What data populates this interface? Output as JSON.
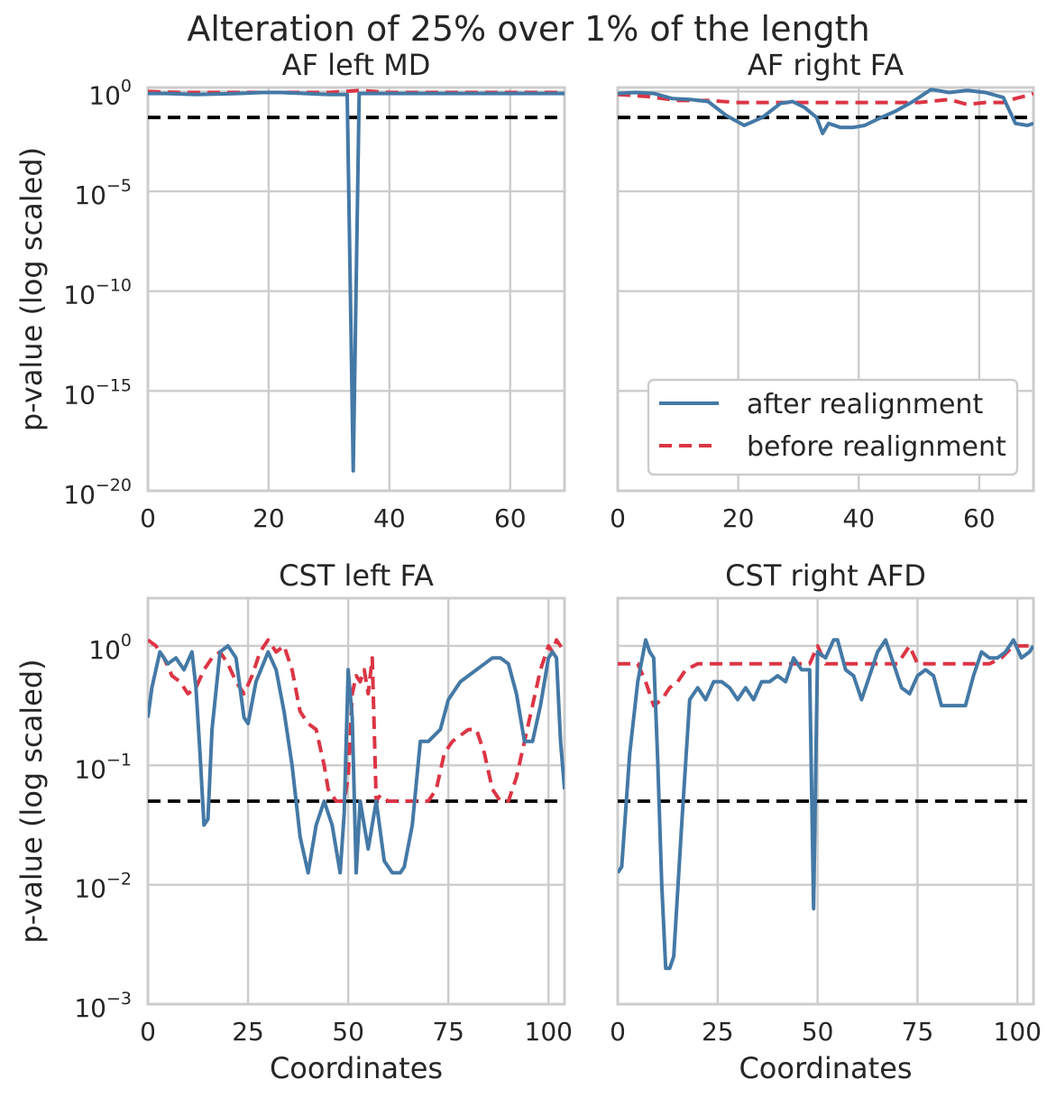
{
  "figure": {
    "title": "Alteration of 25% over 1% of the length",
    "colors": {
      "after": "#4479a6",
      "before": "#dc3545",
      "threshold": "#000000",
      "grid": "#cccccc",
      "text": "#262626"
    },
    "legend": {
      "entries": [
        "after realignment",
        "before realignment"
      ],
      "placement": "lower-right of AF right FA panel"
    }
  },
  "chart_data": [
    {
      "type": "line",
      "title": "AF left MD",
      "xlabel": "",
      "ylabel": "p-value (log scaled)",
      "xlim": [
        0,
        69
      ],
      "ylim_log10": [
        -20,
        0.2
      ],
      "x_ticks": [
        0,
        20,
        40,
        60
      ],
      "y_ticks": [
        {
          "base": "10",
          "exp": "0",
          "log10": 0
        },
        {
          "base": "10",
          "exp": "−5",
          "log10": -5
        },
        {
          "base": "10",
          "exp": "−10",
          "log10": -10
        },
        {
          "base": "10",
          "exp": "−15",
          "log10": -15
        },
        {
          "base": "10",
          "exp": "−20",
          "log10": -20
        }
      ],
      "threshold_log10": -1.3,
      "series": [
        {
          "name": "after realignment",
          "style": "solid",
          "x": [
            0,
            3,
            8,
            15,
            19,
            22,
            26,
            30,
            33,
            34,
            35,
            38,
            45,
            55,
            65,
            69
          ],
          "log10p": [
            -0.1,
            -0.1,
            -0.15,
            -0.1,
            -0.05,
            -0.05,
            -0.1,
            -0.15,
            -0.15,
            -19,
            -0.1,
            -0.1,
            -0.1,
            -0.1,
            -0.1,
            -0.1
          ]
        },
        {
          "name": "before realignment",
          "style": "dashed",
          "x": [
            0,
            5,
            10,
            15,
            20,
            25,
            30,
            35,
            40,
            45,
            50,
            55,
            60,
            65,
            69
          ],
          "log10p": [
            0.0,
            -0.05,
            -0.05,
            -0.05,
            -0.05,
            -0.05,
            -0.05,
            0.05,
            -0.05,
            -0.05,
            -0.05,
            -0.05,
            -0.05,
            -0.05,
            -0.05
          ]
        }
      ]
    },
    {
      "type": "line",
      "title": "AF right FA",
      "xlabel": "",
      "ylabel": "",
      "xlim": [
        0,
        69
      ],
      "ylim_log10": [
        -20,
        0.2
      ],
      "x_ticks": [
        0,
        20,
        40,
        60
      ],
      "y_ticks": [],
      "threshold_log10": -1.3,
      "series": [
        {
          "name": "after realignment",
          "style": "solid",
          "x": [
            0,
            3,
            6,
            9,
            12,
            15,
            18,
            21,
            24,
            27,
            29,
            31,
            33,
            34,
            35,
            37,
            39,
            41,
            43,
            46,
            49,
            52,
            55,
            58,
            61,
            64,
            66,
            68,
            69
          ],
          "log10p": [
            -0.1,
            -0.05,
            -0.1,
            -0.35,
            -0.4,
            -0.5,
            -1.2,
            -1.7,
            -1.3,
            -0.6,
            -0.5,
            -0.8,
            -1.3,
            -2.1,
            -1.6,
            -1.8,
            -1.8,
            -1.7,
            -1.4,
            -1.0,
            -0.5,
            0.1,
            -0.05,
            0.05,
            -0.05,
            -0.3,
            -1.6,
            -1.7,
            -1.6
          ]
        },
        {
          "name": "before realignment",
          "style": "dashed",
          "x": [
            0,
            5,
            10,
            15,
            20,
            25,
            30,
            35,
            40,
            45,
            50,
            55,
            58,
            61,
            64,
            66,
            68,
            69
          ],
          "log10p": [
            -0.15,
            -0.25,
            -0.45,
            -0.45,
            -0.55,
            -0.55,
            -0.55,
            -0.55,
            -0.55,
            -0.55,
            -0.55,
            -0.4,
            -0.65,
            -0.55,
            -0.55,
            -0.35,
            -0.2,
            -0.1
          ]
        }
      ]
    },
    {
      "type": "line",
      "title": "CST left FA",
      "xlabel": "Coordinates",
      "ylabel": "p-value (log scaled)",
      "xlim": [
        0,
        104
      ],
      "ylim_log10": [
        -3,
        0.4
      ],
      "x_ticks": [
        0,
        25,
        50,
        75,
        100
      ],
      "y_ticks": [
        {
          "base": "10",
          "exp": "0",
          "log10": 0
        },
        {
          "base": "10",
          "exp": "−1",
          "log10": -1
        },
        {
          "base": "10",
          "exp": "−2",
          "log10": -2
        },
        {
          "base": "10",
          "exp": "−3",
          "log10": -3
        }
      ],
      "threshold_log10": -1.3,
      "series": [
        {
          "name": "after realignment",
          "style": "solid",
          "x": [
            0,
            1,
            3,
            5,
            7,
            9,
            11,
            12,
            13,
            14,
            15,
            16,
            18,
            20,
            22,
            24,
            25,
            27,
            30,
            32,
            34,
            36,
            38,
            40,
            42,
            44,
            46,
            48,
            49,
            50,
            51,
            52,
            53,
            55,
            57,
            59,
            61,
            63,
            64,
            66,
            68,
            70,
            73,
            75,
            78,
            80,
            82,
            84,
            86,
            88,
            90,
            92,
            94,
            96,
            98,
            100,
            101,
            102,
            103,
            104
          ],
          "log10p": [
            -0.6,
            -0.35,
            -0.05,
            -0.15,
            -0.1,
            -0.2,
            -0.05,
            -0.35,
            -0.9,
            -1.5,
            -1.45,
            -0.7,
            -0.05,
            0.0,
            -0.1,
            -0.6,
            -0.65,
            -0.3,
            -0.05,
            -0.2,
            -0.55,
            -1.0,
            -1.6,
            -1.9,
            -1.5,
            -1.3,
            -1.5,
            -1.9,
            -1.4,
            -0.2,
            -0.6,
            -1.9,
            -1.3,
            -1.7,
            -1.3,
            -1.8,
            -1.9,
            -1.9,
            -1.85,
            -1.5,
            -0.8,
            -0.8,
            -0.7,
            -0.45,
            -0.3,
            -0.25,
            -0.2,
            -0.15,
            -0.1,
            -0.1,
            -0.15,
            -0.4,
            -0.8,
            -0.8,
            -0.5,
            -0.1,
            -0.05,
            -0.1,
            -0.8,
            -1.2
          ]
        },
        {
          "name": "before realignment",
          "style": "dashed",
          "x": [
            0,
            2,
            4,
            6,
            8,
            10,
            12,
            14,
            16,
            18,
            20,
            22,
            24,
            26,
            28,
            30,
            32,
            34,
            36,
            38,
            40,
            42,
            44,
            45,
            47,
            49,
            50,
            51,
            52,
            53,
            54,
            55,
            56,
            57,
            58,
            60,
            62,
            64,
            66,
            68,
            70,
            72,
            74,
            76,
            78,
            80,
            82,
            84,
            86,
            88,
            90,
            92,
            94,
            96,
            98,
            100,
            101,
            102,
            104
          ],
          "log10p": [
            0.05,
            0.0,
            -0.1,
            -0.25,
            -0.3,
            -0.4,
            -0.35,
            -0.2,
            -0.1,
            -0.05,
            -0.15,
            -0.3,
            -0.4,
            -0.25,
            -0.05,
            0.05,
            -0.05,
            0.0,
            -0.2,
            -0.55,
            -0.65,
            -0.7,
            -1.0,
            -1.2,
            -1.3,
            -1.3,
            -1.1,
            -0.4,
            -0.25,
            -0.3,
            -0.2,
            -0.4,
            -0.1,
            -1.3,
            -1.25,
            -1.3,
            -1.3,
            -1.3,
            -1.3,
            -1.3,
            -1.3,
            -1.2,
            -0.9,
            -0.8,
            -0.75,
            -0.7,
            -0.7,
            -0.9,
            -1.2,
            -1.3,
            -1.3,
            -1.1,
            -0.8,
            -0.5,
            -0.2,
            0.0,
            -0.05,
            0.05,
            -0.05
          ]
        }
      ]
    },
    {
      "type": "line",
      "title": "CST right AFD",
      "xlabel": "Coordinates",
      "ylabel": "",
      "xlim": [
        0,
        104
      ],
      "ylim_log10": [
        -3,
        0.4
      ],
      "x_ticks": [
        0,
        25,
        50,
        75,
        100
      ],
      "y_ticks": [],
      "threshold_log10": -1.3,
      "series": [
        {
          "name": "after realignment",
          "style": "solid",
          "x": [
            0,
            1,
            3,
            5,
            7,
            8,
            9,
            10,
            11,
            12,
            13,
            14,
            16,
            18,
            20,
            22,
            24,
            26,
            28,
            30,
            32,
            34,
            36,
            38,
            40,
            42,
            44,
            46,
            48,
            49,
            50,
            52,
            54,
            55,
            57,
            59,
            61,
            63,
            65,
            67,
            69,
            71,
            73,
            75,
            77,
            79,
            81,
            83,
            85,
            87,
            89,
            91,
            93,
            95,
            97,
            99,
            101,
            103,
            104
          ],
          "log10p": [
            -1.9,
            -1.85,
            -0.9,
            -0.3,
            0.05,
            -0.05,
            -0.1,
            -0.95,
            -2.0,
            -2.7,
            -2.7,
            -2.6,
            -1.5,
            -0.45,
            -0.35,
            -0.45,
            -0.3,
            -0.3,
            -0.35,
            -0.45,
            -0.35,
            -0.45,
            -0.3,
            -0.3,
            -0.25,
            -0.3,
            -0.1,
            -0.2,
            -0.2,
            -2.2,
            -0.05,
            -0.1,
            0.05,
            0.05,
            -0.2,
            -0.25,
            -0.45,
            -0.25,
            -0.05,
            0.05,
            -0.15,
            -0.35,
            -0.4,
            -0.25,
            -0.2,
            -0.25,
            -0.5,
            -0.5,
            -0.5,
            -0.5,
            -0.25,
            -0.05,
            -0.1,
            -0.1,
            -0.05,
            0.05,
            -0.1,
            -0.05,
            0.0
          ]
        },
        {
          "name": "before realignment",
          "style": "dashed",
          "x": [
            0,
            3,
            5,
            7,
            9,
            11,
            13,
            15,
            17,
            20,
            25,
            30,
            35,
            40,
            45,
            48,
            50,
            52,
            55,
            60,
            65,
            70,
            73,
            75,
            80,
            85,
            90,
            93,
            96,
            99,
            101,
            103,
            104
          ],
          "log10p": [
            -0.15,
            -0.15,
            -0.15,
            -0.3,
            -0.5,
            -0.45,
            -0.35,
            -0.3,
            -0.2,
            -0.15,
            -0.15,
            -0.15,
            -0.15,
            -0.15,
            -0.15,
            -0.15,
            0.0,
            -0.15,
            -0.15,
            -0.15,
            -0.15,
            -0.15,
            0.0,
            -0.15,
            -0.15,
            -0.15,
            -0.15,
            -0.15,
            -0.1,
            0.0,
            0.0,
            0.0,
            0.0
          ]
        }
      ]
    }
  ]
}
